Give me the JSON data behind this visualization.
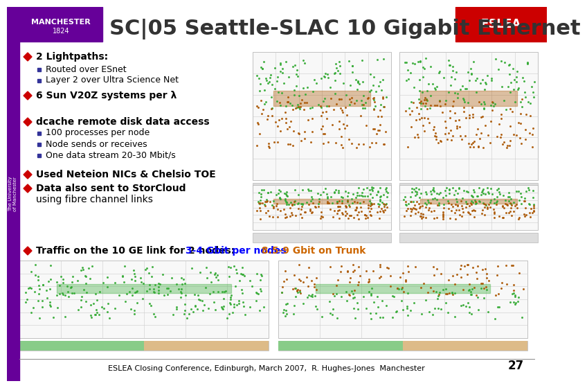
{
  "title": "SC|05 Seattle-SLAC 10 Gigabit Ethernet",
  "title_color": "#333333",
  "title_fontsize": 22,
  "background_color": "#ffffff",
  "left_panel": {
    "bullet1_main": "2 Lightpaths:",
    "bullet1_sub": [
      "Routed over ESnet",
      "Layer 2 over Ultra Science Net"
    ],
    "bullet2_main": "6 Sun V20Z systems per λ",
    "bullet3_main": "dcache remote disk data access",
    "bullet3_sub": [
      "100 processes per node",
      "Node sends or receives",
      "One data stream 20-30 Mbit/s"
    ],
    "bullet4_main": "Used Neteion NICs & Chelsio TOE",
    "bullet5_main": "Data also sent to StorCloud",
    "bullet5_sub2": "using fibre channel links"
  },
  "traffic_line": {
    "text1": "Traffic on the 10 GE link for 2 nodes: ",
    "text2": "3-4 Gbit per nodes",
    "text3": "  8.5-9 Gbit on Trunk",
    "color1": "#000000",
    "color2": "#0000ff",
    "color3": "#cc6600"
  },
  "footer": "ESLEA Closing Conference, Edinburgh, March 2007,  R. Hughes-Jones  Manchester",
  "page_number": "27",
  "manchester_box_color": "#660099",
  "diamond_color": "#cc0000",
  "square_color": "#333399",
  "sidebar_color": "#660099"
}
